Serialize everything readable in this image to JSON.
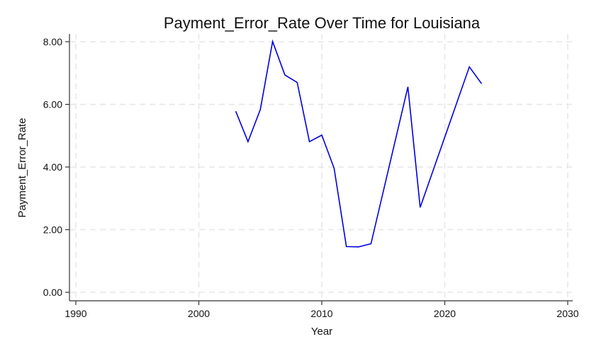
{
  "chart_data": {
    "type": "line",
    "title": "Payment_Error_Rate Over Time for Louisiana",
    "xlabel": "Year",
    "ylabel": "Payment_Error_Rate",
    "xlim": [
      1990,
      2030
    ],
    "ylim": [
      0,
      8
    ],
    "xticks": [
      "1990",
      "2000",
      "2010",
      "2020",
      "2030"
    ],
    "yticks": [
      "0.00",
      "2.00",
      "4.00",
      "6.00",
      "8.00"
    ],
    "grid": true,
    "legend": "none",
    "colors": {
      "line": "#0000dd",
      "grid": "#e6e6e6",
      "axis": "#333333"
    },
    "series": [
      {
        "x": [
          2003,
          2004,
          2005,
          2006,
          2007,
          2008,
          2009,
          2010,
          2011,
          2012,
          2013,
          2014,
          2017,
          2018,
          2022,
          2023
        ],
        "values": [
          5.78,
          4.81,
          5.84,
          8.01,
          6.94,
          6.7,
          4.81,
          5.02,
          3.96,
          1.46,
          1.45,
          1.55,
          6.56,
          2.71,
          7.2,
          6.66
        ]
      }
    ]
  }
}
